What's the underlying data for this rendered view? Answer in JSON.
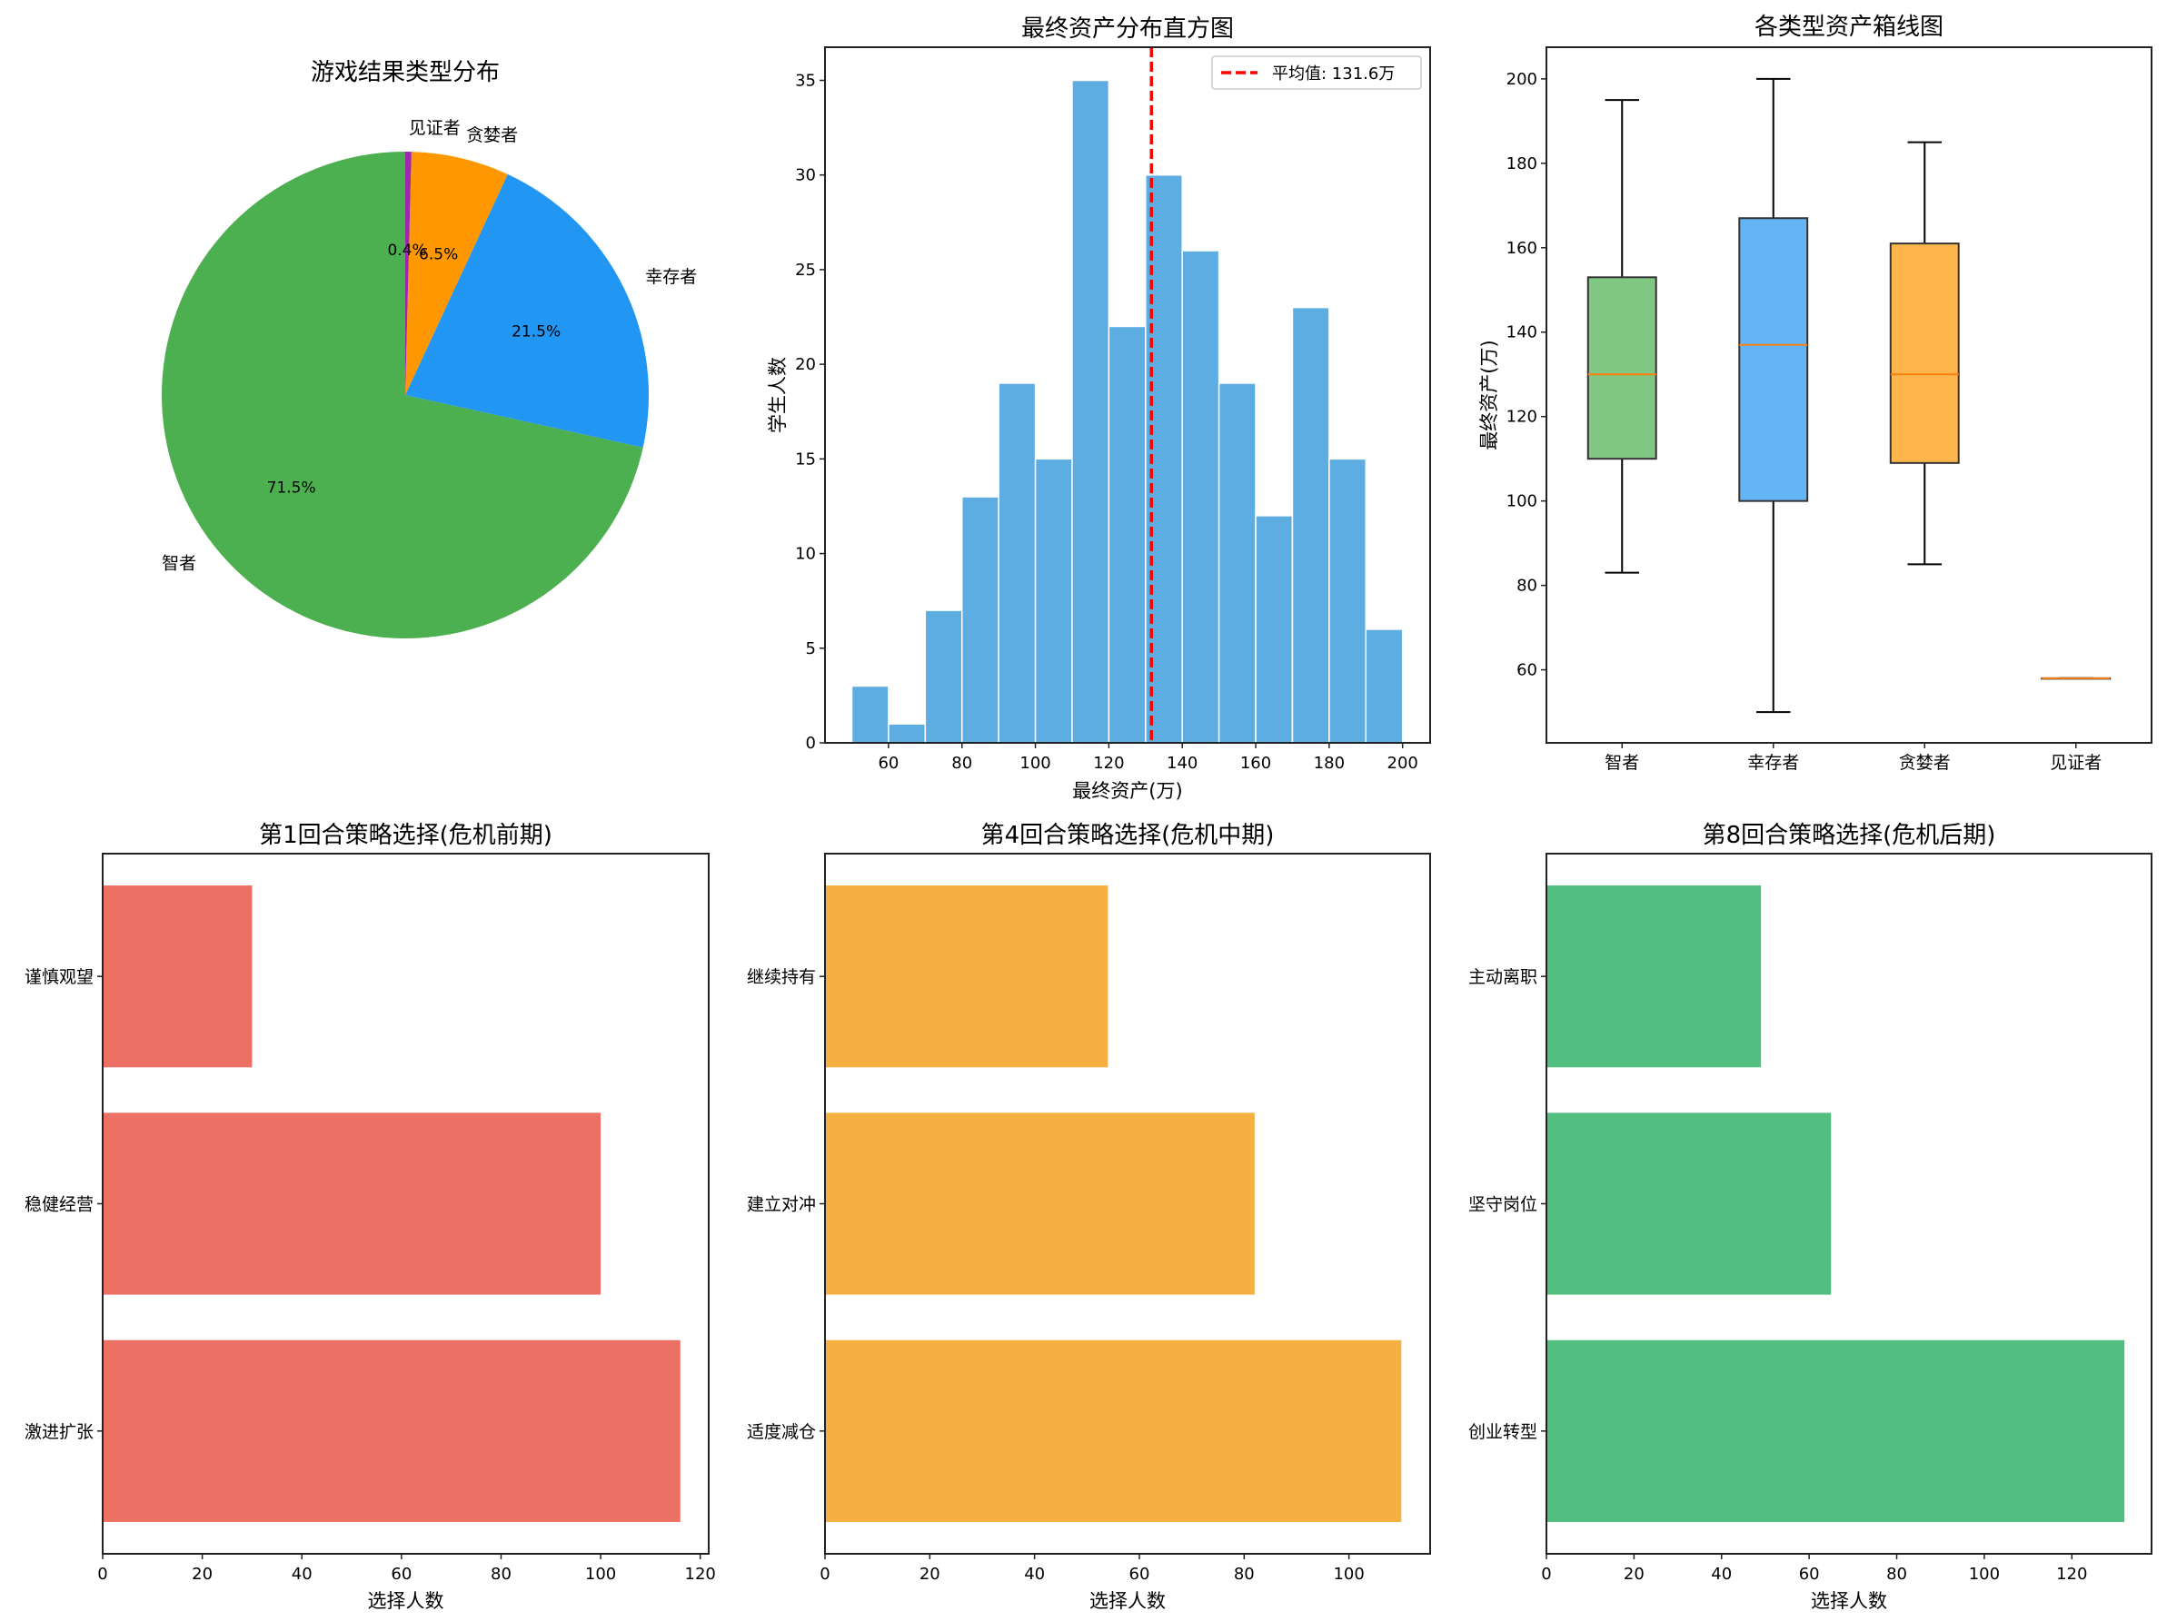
{
  "chart_data": [
    {
      "type": "pie",
      "title": "游戏结果类型分布",
      "labels": [
        "智者",
        "幸存者",
        "贪婪者",
        "见证者"
      ],
      "values": [
        176,
        53,
        16,
        1
      ],
      "pct_labels": [
        "71.5%",
        "21.5%",
        "6.5%",
        "0.4%"
      ],
      "colors": [
        "#4CAF50",
        "#2196F3",
        "#FF9800",
        "#9C27B0"
      ],
      "start_angle": 90
    },
    {
      "type": "bar",
      "subtype": "histogram",
      "title": "最终资产分布直方图",
      "xlabel": "最终资产(万)",
      "ylabel": "学生人数",
      "bin_edges": [
        50,
        60,
        70,
        80,
        90,
        100,
        110,
        120,
        130,
        140,
        150,
        160,
        170,
        180,
        190,
        200
      ],
      "counts": [
        3,
        1,
        7,
        13,
        19,
        15,
        35,
        22,
        30,
        26,
        19,
        12,
        23,
        15,
        6
      ],
      "xlim": [
        42.7,
        207.5
      ],
      "ylim": [
        0,
        36.75
      ],
      "xticks": [
        60,
        80,
        100,
        120,
        140,
        160,
        180,
        200
      ],
      "yticks": [
        0,
        5,
        10,
        15,
        20,
        25,
        30,
        35
      ],
      "color": "#5DADE2",
      "mean_line": {
        "value": 131.6,
        "label": "平均值: 131.6万",
        "color": "#FF0000"
      },
      "legend": "top-right",
      "grid": false
    },
    {
      "type": "box",
      "title": "各类型资产箱线图",
      "ylabel": "最终资产(万)",
      "categories": [
        "智者",
        "幸存者",
        "贪婪者",
        "见证者"
      ],
      "boxes": [
        {
          "whislo": 83,
          "q1": 110,
          "med": 130,
          "q3": 153,
          "whishi": 195
        },
        {
          "whislo": 50,
          "q1": 100,
          "med": 137,
          "q3": 167,
          "whishi": 200
        },
        {
          "whislo": 85,
          "q1": 109,
          "med": 130,
          "q3": 161,
          "whishi": 185
        },
        {
          "whislo": 58,
          "q1": 58,
          "med": 58,
          "q3": 58,
          "whishi": 58
        }
      ],
      "colors": [
        "#81C784",
        "#64B5F6",
        "#FFB74D",
        "#BA68C8"
      ],
      "median_color": "#FF7F0E",
      "ylim": [
        42.7,
        207.5
      ],
      "yticks": [
        60,
        80,
        100,
        120,
        140,
        160,
        180,
        200
      ]
    },
    {
      "type": "bar",
      "orientation": "horizontal",
      "title": "第1回合策略选择(危机前期)",
      "xlabel": "选择人数",
      "categories": [
        "激进扩张",
        "稳健经营",
        "谨慎观望"
      ],
      "values": [
        116,
        100,
        30
      ],
      "xlim": [
        0,
        121.7
      ],
      "xticks": [
        0,
        20,
        40,
        60,
        80,
        100,
        120
      ],
      "color": "#EC7063"
    },
    {
      "type": "bar",
      "orientation": "horizontal",
      "title": "第4回合策略选择(危机中期)",
      "xlabel": "选择人数",
      "categories": [
        "适度减仓",
        "建立对冲",
        "继续持有"
      ],
      "values": [
        110,
        82,
        54
      ],
      "xlim": [
        0,
        115.5
      ],
      "xticks": [
        0,
        20,
        40,
        60,
        80,
        100
      ],
      "color": "#F5B041"
    },
    {
      "type": "bar",
      "orientation": "horizontal",
      "title": "第8回合策略选择(危机后期)",
      "xlabel": "选择人数",
      "categories": [
        "创业转型",
        "坚守岗位",
        "主动离职"
      ],
      "values": [
        132,
        65,
        49
      ],
      "xlim": [
        0,
        138.2
      ],
      "xticks": [
        0,
        20,
        40,
        60,
        80,
        100,
        120
      ],
      "color": "#52BE80"
    }
  ]
}
